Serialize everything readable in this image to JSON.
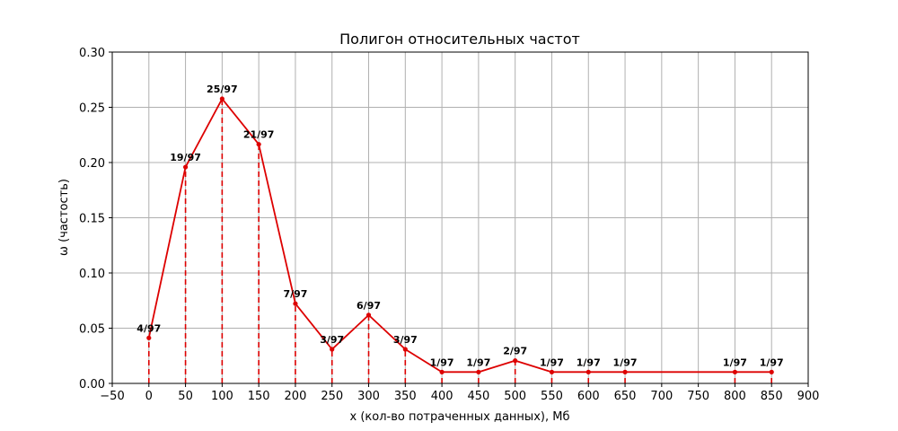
{
  "chart_data": {
    "type": "line",
    "title": "Полигон относительных частот",
    "xlabel": "x (кол-во потраченных данных), Мб",
    "ylabel": "ω (частость)",
    "xlim": [
      -50,
      900
    ],
    "ylim": [
      0,
      0.3
    ],
    "x_ticks": [
      "−50",
      "0",
      "50",
      "100",
      "150",
      "200",
      "250",
      "300",
      "350",
      "400",
      "450",
      "500",
      "550",
      "600",
      "650",
      "700",
      "750",
      "800",
      "850",
      "900"
    ],
    "y_ticks": [
      "0.00",
      "0.05",
      "0.10",
      "0.15",
      "0.20",
      "0.25",
      "0.30"
    ],
    "grid": true,
    "line_color": "#dd0000",
    "points": [
      {
        "x": 0,
        "y": 0.0412,
        "label": "4/97"
      },
      {
        "x": 50,
        "y": 0.1959,
        "label": "19/97"
      },
      {
        "x": 100,
        "y": 0.2577,
        "label": "25/97"
      },
      {
        "x": 150,
        "y": 0.2165,
        "label": "21/97"
      },
      {
        "x": 200,
        "y": 0.0722,
        "label": "7/97"
      },
      {
        "x": 250,
        "y": 0.0309,
        "label": "3/97"
      },
      {
        "x": 300,
        "y": 0.0619,
        "label": "6/97"
      },
      {
        "x": 350,
        "y": 0.0309,
        "label": "3/97"
      },
      {
        "x": 400,
        "y": 0.0103,
        "label": "1/97"
      },
      {
        "x": 450,
        "y": 0.0103,
        "label": "1/97"
      },
      {
        "x": 500,
        "y": 0.0206,
        "label": "2/97"
      },
      {
        "x": 550,
        "y": 0.0103,
        "label": "1/97"
      },
      {
        "x": 600,
        "y": 0.0103,
        "label": "1/97"
      },
      {
        "x": 650,
        "y": 0.0103,
        "label": "1/97"
      },
      {
        "x": 800,
        "y": 0.0103,
        "label": "1/97"
      },
      {
        "x": 850,
        "y": 0.0103,
        "label": "1/97"
      }
    ]
  }
}
